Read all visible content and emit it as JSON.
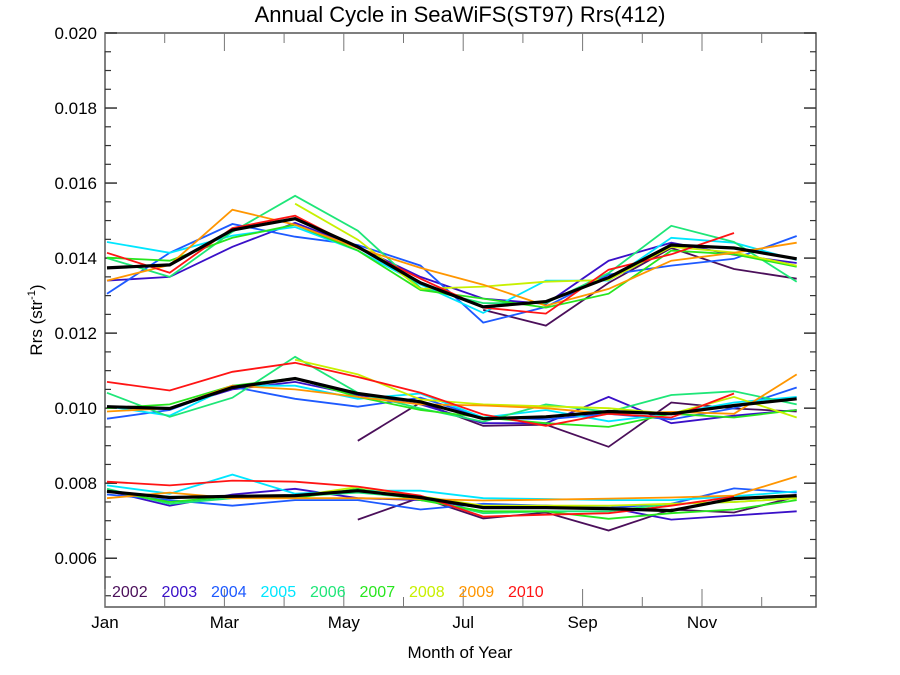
{
  "chart_data": {
    "type": "line",
    "title": "Annual Cycle in SeaWiFS(ST97) Rrs(412)",
    "xlabel": "Month of Year",
    "ylabel_main": "Rrs (str",
    "ylabel_sup": "-1",
    "ylabel_close": ")",
    "ylim": [
      0.0047,
      0.02
    ],
    "yticks": [
      0.006,
      0.008,
      0.01,
      0.012,
      0.014,
      0.016,
      0.018,
      0.02
    ],
    "ytick_labels": [
      "0.006",
      "0.008",
      "0.010",
      "0.012",
      "0.014",
      "0.016",
      "0.018",
      "0.020"
    ],
    "xtick_labels": [
      "Jan",
      "Mar",
      "May",
      "Jul",
      "Sep",
      "Nov"
    ],
    "x": [
      "Jan",
      "Feb",
      "Mar",
      "Apr",
      "May",
      "Jun",
      "Jul",
      "Aug",
      "Sep",
      "Oct",
      "Nov",
      "Dec"
    ],
    "grid": false,
    "legend_position": "bottom-left",
    "groups": [
      {
        "name": "upper",
        "series": [
          {
            "name": "2002",
            "color": "#4b0f5a",
            "values": [
              null,
              null,
              null,
              null,
              null,
              null,
              0.01262,
              0.0122,
              0.01334,
              0.01427,
              0.01371,
              0.01345
            ]
          },
          {
            "name": "2003",
            "color": "#3a10c8",
            "values": [
              0.0134,
              0.0135,
              0.0143,
              0.01494,
              0.0143,
              0.0135,
              0.01292,
              0.01278,
              0.01393,
              0.01441,
              0.01409,
              0.01387
            ]
          },
          {
            "name": "2004",
            "color": "#1e5aff",
            "values": [
              0.01305,
              0.01414,
              0.01491,
              0.01457,
              0.01435,
              0.0138,
              0.01228,
              0.0127,
              0.01356,
              0.0138,
              0.01398,
              0.01459
            ]
          },
          {
            "name": "2005",
            "color": "#00e6ff",
            "values": [
              0.01443,
              0.01414,
              0.0146,
              0.01483,
              0.0142,
              0.0133,
              0.01254,
              0.0134,
              0.0134,
              0.01454,
              0.01441,
              0.01395
            ]
          },
          {
            "name": "2006",
            "color": "#1ee678",
            "values": [
              0.014,
              0.0135,
              0.0147,
              0.01566,
              0.01473,
              0.0132,
              0.0128,
              0.0128,
              0.0136,
              0.01486,
              0.01443,
              0.01337
            ]
          },
          {
            "name": "2007",
            "color": "#28e61e",
            "values": [
              0.01401,
              0.01393,
              0.01454,
              0.01489,
              0.0142,
              0.01315,
              0.01292,
              0.01268,
              0.01305,
              0.0142,
              0.0141,
              0.01377
            ]
          },
          {
            "name": "2008",
            "color": "#c8f000",
            "values": [
              null,
              null,
              null,
              0.01545,
              0.01449,
              0.01318,
              0.01324,
              0.01337,
              0.01342,
              0.0143,
              0.01415,
              0.0138
            ]
          },
          {
            "name": "2009",
            "color": "#ff9600",
            "values": [
              0.0134,
              0.01382,
              0.01529,
              0.01489,
              0.01427,
              0.01374,
              0.01329,
              0.01273,
              0.01318,
              0.01393,
              0.01414,
              0.01441
            ]
          },
          {
            "name": "2010",
            "color": "#ff1414",
            "values": [
              0.01414,
              0.01361,
              0.0148,
              0.01513,
              0.01427,
              0.01345,
              0.01268,
              0.01252,
              0.01369,
              0.0141,
              0.01467,
              null
            ]
          },
          {
            "name": "mean",
            "color": "#000000",
            "values": [
              0.01374,
              0.01382,
              0.01475,
              0.01505,
              0.0143,
              0.01334,
              0.0127,
              0.01284,
              0.01348,
              0.01435,
              0.01427,
              0.01398
            ]
          }
        ]
      },
      {
        "name": "middle",
        "series": [
          {
            "name": "2002",
            "color": "#4b0f5a",
            "values": [
              null,
              null,
              null,
              null,
              0.00913,
              0.01015,
              0.00953,
              0.00956,
              0.00897,
              0.01015,
              0.00999,
              0.00991
            ]
          },
          {
            "name": "2003",
            "color": "#3a10c8",
            "values": [
              0.01005,
              0.01,
              0.0105,
              0.0107,
              0.01035,
              0.0101,
              0.0096,
              0.0096,
              0.0103,
              0.0096,
              0.0098,
              0.00995
            ]
          },
          {
            "name": "2004",
            "color": "#1e5aff",
            "values": [
              0.00972,
              0.00995,
              0.01057,
              0.01025,
              0.01004,
              0.01028,
              0.00975,
              0.0097,
              0.00985,
              0.0097,
              0.01,
              0.01055
            ]
          },
          {
            "name": "2005",
            "color": "#00e6ff",
            "values": [
              0.01005,
              0.0098,
              0.0106,
              0.0106,
              0.01025,
              0.01039,
              0.00975,
              0.00995,
              0.00965,
              0.00985,
              0.01015,
              0.0103
            ]
          },
          {
            "name": "2006",
            "color": "#1ee678",
            "values": [
              0.01041,
              0.00977,
              0.01028,
              0.01137,
              0.01041,
              0.00999,
              0.00964,
              0.0101,
              0.0099,
              0.01035,
              0.01045,
              0.0101
            ]
          },
          {
            "name": "2007",
            "color": "#28e61e",
            "values": [
              0.01,
              0.0101,
              0.0106,
              0.0108,
              0.0103,
              0.00995,
              0.00975,
              0.0096,
              0.0095,
              0.00985,
              0.00975,
              0.00995
            ]
          },
          {
            "name": "2008",
            "color": "#c8f000",
            "values": [
              null,
              null,
              null,
              0.01129,
              0.0109,
              0.01023,
              0.0101,
              0.01005,
              0.01,
              0.00985,
              0.0103,
              0.00975
            ]
          },
          {
            "name": "2009",
            "color": "#ff9600",
            "values": [
              0.00991,
              0.01,
              0.0106,
              0.0105,
              0.0103,
              0.0101,
              0.01007,
              0.01,
              0.00985,
              0.0099,
              0.00985,
              0.0109
            ]
          },
          {
            "name": "2010",
            "color": "#ff1414",
            "values": [
              0.0107,
              0.01047,
              0.01097,
              0.01121,
              0.01083,
              0.01041,
              0.00983,
              0.00953,
              0.00985,
              0.00975,
              0.01039,
              null
            ]
          },
          {
            "name": "mean",
            "color": "#000000",
            "values": [
              0.01004,
              0.00999,
              0.01055,
              0.01079,
              0.01039,
              0.01017,
              0.00972,
              0.00977,
              0.00991,
              0.00985,
              0.01007,
              0.01025
            ]
          }
        ]
      },
      {
        "name": "lower",
        "series": [
          {
            "name": "2002",
            "color": "#4b0f5a",
            "values": [
              null,
              null,
              null,
              null,
              0.00703,
              0.00762,
              0.00706,
              0.00722,
              0.00674,
              0.0073,
              0.00722,
              0.00764
            ]
          },
          {
            "name": "2003",
            "color": "#3a10c8",
            "values": [
              0.0078,
              0.0074,
              0.0077,
              0.00785,
              0.0076,
              0.00755,
              0.00735,
              0.0074,
              0.00735,
              0.00703,
              0.00714,
              0.00725
            ]
          },
          {
            "name": "2004",
            "color": "#1e5aff",
            "values": [
              0.0077,
              0.00755,
              0.0074,
              0.00755,
              0.00755,
              0.0073,
              0.00745,
              0.0074,
              0.00735,
              0.00745,
              0.00786,
              0.00775
            ]
          },
          {
            "name": "2005",
            "color": "#00e6ff",
            "values": [
              0.00794,
              0.00772,
              0.00823,
              0.00772,
              0.0078,
              0.0078,
              0.0076,
              0.00758,
              0.00755,
              0.00755,
              0.00765,
              0.00778
            ]
          },
          {
            "name": "2006",
            "color": "#1ee678",
            "values": [
              0.00785,
              0.00745,
              0.0076,
              0.00765,
              0.00775,
              0.0076,
              0.0072,
              0.00725,
              0.00725,
              0.00745,
              0.0075,
              0.0076
            ]
          },
          {
            "name": "2007",
            "color": "#28e61e",
            "values": [
              0.0078,
              0.0075,
              0.00765,
              0.0076,
              0.00785,
              0.00755,
              0.00725,
              0.00725,
              0.00705,
              0.0072,
              0.0073,
              0.00755
            ]
          },
          {
            "name": "2008",
            "color": "#c8f000",
            "values": [
              null,
              null,
              null,
              0.00765,
              0.0079,
              0.00765,
              0.0074,
              0.0074,
              0.0074,
              0.00745,
              0.0075,
              0.0076
            ]
          },
          {
            "name": "2009",
            "color": "#ff9600",
            "values": [
              0.0076,
              0.00775,
              0.0076,
              0.0076,
              0.0076,
              0.00758,
              0.00754,
              0.00756,
              0.00759,
              0.00762,
              0.00767,
              0.00818
            ]
          },
          {
            "name": "2010",
            "color": "#ff1414",
            "values": [
              0.00804,
              0.00794,
              0.00807,
              0.00804,
              0.00791,
              0.00767,
              0.00711,
              0.00716,
              0.0072,
              0.0074,
              0.00764,
              null
            ]
          },
          {
            "name": "mean",
            "color": "#000000",
            "values": [
              0.00778,
              0.00762,
              0.00765,
              0.00767,
              0.0078,
              0.00762,
              0.00735,
              0.00735,
              0.00732,
              0.00727,
              0.00759,
              0.00767
            ]
          }
        ]
      }
    ],
    "legend": [
      {
        "label": "2002",
        "color": "#4b0f5a"
      },
      {
        "label": "2003",
        "color": "#3a10c8"
      },
      {
        "label": "2004",
        "color": "#1e5aff"
      },
      {
        "label": "2005",
        "color": "#00e6ff"
      },
      {
        "label": "2006",
        "color": "#1ee678"
      },
      {
        "label": "2007",
        "color": "#28e61e"
      },
      {
        "label": "2008",
        "color": "#c8f000"
      },
      {
        "label": "2009",
        "color": "#ff9600"
      },
      {
        "label": "2010",
        "color": "#ff1414"
      }
    ]
  }
}
